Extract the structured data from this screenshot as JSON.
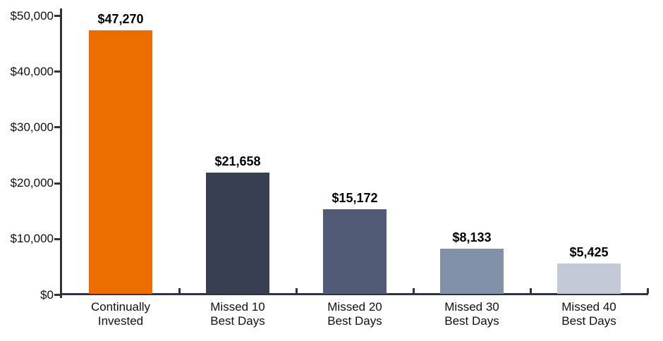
{
  "chart_data": {
    "type": "bar",
    "title": "",
    "xlabel": "",
    "ylabel": "",
    "categories": [
      "Continually Invested",
      "Missed 10 Best Days",
      "Missed 20 Best Days",
      "Missed 30 Best Days",
      "Missed 40 Best Days"
    ],
    "category_lines": [
      [
        "Continually",
        "Invested"
      ],
      [
        "Missed 10",
        "Best Days"
      ],
      [
        "Missed 20",
        "Best Days"
      ],
      [
        "Missed 30",
        "Best Days"
      ],
      [
        "Missed 40",
        "Best Days"
      ]
    ],
    "values": [
      47270,
      21658,
      15172,
      8133,
      5425
    ],
    "value_labels": [
      "$47,270",
      "$21,658",
      "$15,172",
      "$8,133",
      "$5,425"
    ],
    "bar_colors": [
      "#ED6E00",
      "#383F52",
      "#515B76",
      "#8390AA",
      "#C4C9D7"
    ],
    "y_ticks": [
      0,
      10000,
      20000,
      30000,
      40000,
      50000
    ],
    "y_tick_labels": [
      "$0",
      "$10,000",
      "$20,000",
      "$30,000",
      "$40,000",
      "$50,000"
    ],
    "ylim": [
      0,
      50000
    ],
    "grid": false,
    "legend": "none",
    "axis_color": "#2D3342",
    "label_color": "#111111",
    "value_label_color": "#000000",
    "background_color": "#FFFFFF"
  }
}
